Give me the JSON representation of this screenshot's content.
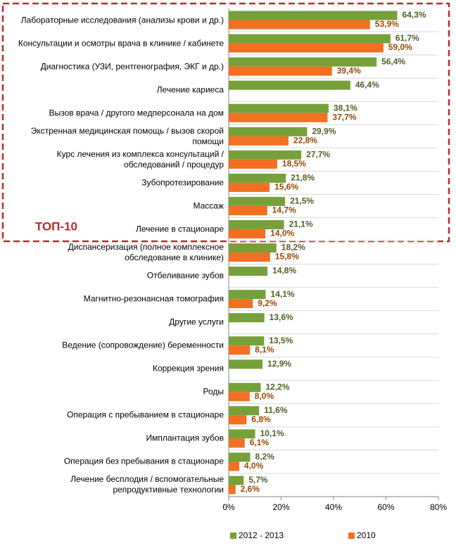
{
  "chart_data": {
    "type": "bar",
    "orientation": "horizontal",
    "annotation": "ТОП-10",
    "categories": [
      "Лабораторные исследования (анализы крови и др.)",
      "Консультации и осмотры врача в клинике / кабинете",
      "Диагностика (УЗИ, рентгенография, ЭКГ и др.)",
      "Лечение кариеса",
      "Вызов врача / другого медперсонала на дом",
      "Экстренная медицинская помощь / вызов скорой\nпомощи",
      "Курс лечения из комплекса консультаций /\nобследований / процедур",
      "Зубопротезирование",
      "Массаж",
      "Лечение в стационаре",
      "Диспансеризация (полное комплексное\nобследование в клинике)",
      "Отбеливание зубов",
      "Магнитно-резонансная томография",
      "Другие услуги",
      "Ведение (сопровождение) беременности",
      "Коррекция зрения",
      "Роды",
      "Операция с пребыванием в стационаре",
      "Имплантация зубов",
      "Операция без пребывания в стационаре",
      "Лечение бесплодия / вспомогательные\nрепродуктивные технологии"
    ],
    "series": [
      {
        "name": "2012 - 2013",
        "color": "#77a03a",
        "label_color": "#4f6228",
        "values": [
          64.3,
          61.7,
          56.4,
          46.4,
          38.1,
          29.9,
          27.7,
          21.8,
          21.5,
          21.1,
          18.2,
          14.8,
          14.1,
          13.6,
          13.5,
          12.9,
          12.2,
          11.6,
          10.1,
          8.2,
          5.7
        ],
        "value_labels": [
          "64,3%",
          "61,7%",
          "56,4%",
          "46,4%",
          "38,1%",
          "29,9%",
          "27,7%",
          "21,8%",
          "21,5%",
          "21,1%",
          "18,2%",
          "14,8%",
          "14,1%",
          "13,6%",
          "13,5%",
          "12,9%",
          "12,2%",
          "11,6%",
          "10,1%",
          "8,2%",
          "5,7%"
        ]
      },
      {
        "name": "2010",
        "color": "#f36f21",
        "label_color": "#984807",
        "values": [
          53.9,
          59.0,
          39.4,
          null,
          37.7,
          22.8,
          18.5,
          15.6,
          14.7,
          14.0,
          15.8,
          null,
          9.2,
          null,
          8.1,
          null,
          8.0,
          6.8,
          6.1,
          4.0,
          2.6
        ],
        "value_labels": [
          "53,9%",
          "59,0%",
          "39,4%",
          null,
          "37,7%",
          "22,8%",
          "18,5%",
          "15,6%",
          "14,7%",
          "14,0%",
          "15,8%",
          null,
          "9,2%",
          null,
          "8,1%",
          null,
          "8,0%",
          "6,8%",
          "6,1%",
          "4,0%",
          "2,6%"
        ]
      }
    ],
    "xlim": [
      0,
      80
    ],
    "xticks": [
      {
        "value": 0,
        "label": "0%"
      },
      {
        "value": 20,
        "label": "20%"
      },
      {
        "value": 40,
        "label": "40%"
      },
      {
        "value": 60,
        "label": "60%"
      },
      {
        "value": 80,
        "label": "80%"
      }
    ],
    "legend": "bottom"
  }
}
